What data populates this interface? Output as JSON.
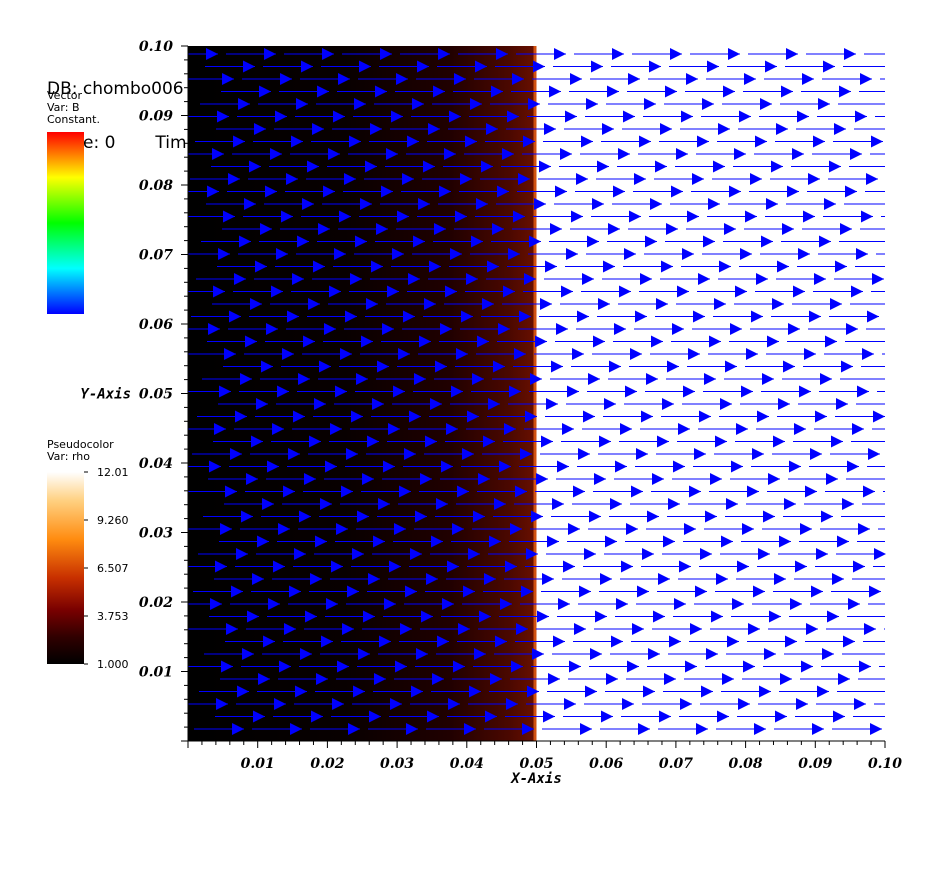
{
  "header": {
    "db": "DB: chombo006",
    "cycle": "Cycle: 0",
    "time": "Time"
  },
  "vector_legend": {
    "title": "Vector",
    "var": "Var: B",
    "mode": "Constant."
  },
  "pseudocolor_legend": {
    "title": "Pseudocolor",
    "var": "Var: rho",
    "ticks": [
      "12.01",
      "9.260",
      "6.507",
      "3.753",
      "1.000"
    ]
  },
  "colors": {
    "arrow": "#0000ff",
    "vector_bar": [
      "#ff0000",
      "#ffff00",
      "#00ff00",
      "#00ffff",
      "#0000ff"
    ],
    "pseudocolor_bar": [
      "#ffffff",
      "#ff8c10",
      "#780000",
      "#000000"
    ]
  },
  "chart_data": {
    "type": "vector field over pseudocolor",
    "xlabel": "X-Axis",
    "ylabel": "Y-Axis",
    "xlim": [
      0.0,
      0.1
    ],
    "ylim": [
      0.0,
      0.1
    ],
    "xticks": [
      "0.01",
      "0.02",
      "0.03",
      "0.04",
      "0.05",
      "0.06",
      "0.07",
      "0.08",
      "0.09",
      "0.10"
    ],
    "yticks": [
      "0.01",
      "0.02",
      "0.03",
      "0.04",
      "0.05",
      "0.06",
      "0.07",
      "0.08",
      "0.09",
      "0.10"
    ],
    "rho": {
      "min": 1.0,
      "max": 12.01,
      "left_region": {
        "x_range": [
          0.0,
          0.05
        ],
        "rho_start": 1.0,
        "rho_end": 3.9
      },
      "discontinuity_x": 0.05,
      "right_region": {
        "x_range": [
          0.05,
          0.1
        ],
        "rho": 12.01
      }
    },
    "vector_field": {
      "variable": "B",
      "direction": "+x",
      "coloring": "constant"
    }
  }
}
